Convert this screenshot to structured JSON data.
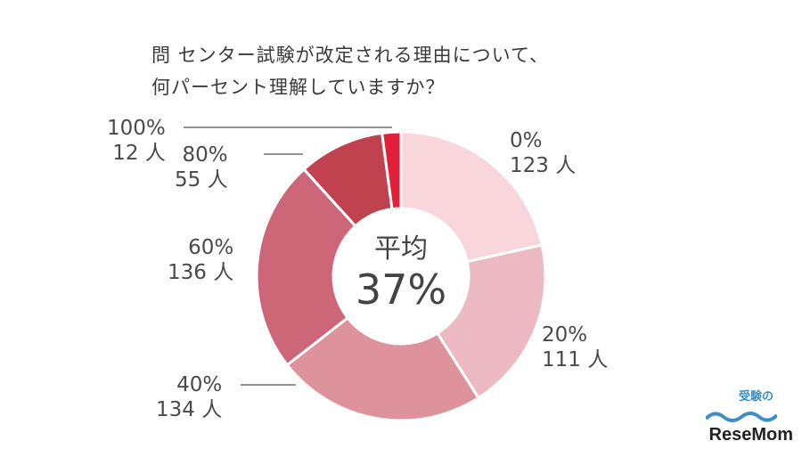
{
  "title": {
    "line1": "問 センター試験が改定される理由について、",
    "line2": "何パーセント理解していますか？"
  },
  "center": {
    "caption": "平均",
    "value": "37%"
  },
  "chart_data": {
    "type": "pie",
    "donut": true,
    "title": "問 センター試験が改定される理由について、何パーセント理解していますか？",
    "categories": [
      "0%",
      "20%",
      "40%",
      "60%",
      "80%",
      "100%"
    ],
    "values": [
      123,
      111,
      134,
      136,
      55,
      12
    ],
    "unit": "人",
    "value_labels": [
      "123 人",
      "111 人",
      "134 人",
      "136 人",
      "55 人",
      "12 人"
    ],
    "colors": [
      "#f8d6dc",
      "#edb9c2",
      "#de929c",
      "#cd6676",
      "#c0424f",
      "#e2203a"
    ],
    "annotation": {
      "label": "平均",
      "value": "37%"
    }
  },
  "logo": {
    "text1": "受験の",
    "text2": "ReseMom"
  }
}
